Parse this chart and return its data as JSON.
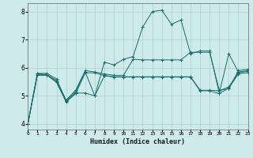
{
  "xlabel": "Humidex (Indice chaleur)",
  "xlim": [
    0,
    23
  ],
  "ylim": [
    3.8,
    8.3
  ],
  "yticks": [
    4,
    5,
    6,
    7,
    8
  ],
  "bg_color": "#ceeaea",
  "grid_color": "#aacfcf",
  "line_color": "#1a6b6b",
  "lines": [
    [
      4.0,
      5.8,
      5.8,
      5.6,
      4.8,
      5.1,
      5.1,
      5.0,
      6.2,
      6.1,
      6.3,
      6.4,
      7.45,
      8.0,
      8.05,
      7.55,
      7.7,
      6.5,
      6.6,
      6.6,
      5.1,
      6.5,
      5.85,
      5.9
    ],
    [
      4.0,
      5.8,
      5.75,
      5.55,
      4.85,
      5.2,
      5.9,
      5.85,
      5.78,
      5.73,
      5.73,
      6.3,
      6.28,
      6.28,
      6.28,
      6.28,
      6.28,
      6.55,
      6.55,
      6.55,
      5.2,
      5.25,
      5.9,
      5.95
    ],
    [
      4.0,
      5.75,
      5.75,
      5.5,
      4.82,
      5.15,
      5.85,
      5.0,
      5.72,
      5.68,
      5.68,
      5.68,
      5.68,
      5.68,
      5.68,
      5.68,
      5.68,
      5.68,
      5.2,
      5.2,
      5.18,
      5.32,
      5.82,
      5.88
    ],
    [
      4.0,
      5.73,
      5.73,
      5.48,
      4.78,
      5.08,
      5.82,
      5.82,
      5.72,
      5.67,
      5.67,
      5.67,
      5.67,
      5.67,
      5.67,
      5.67,
      5.67,
      5.67,
      5.18,
      5.18,
      5.08,
      5.28,
      5.78,
      5.83
    ]
  ]
}
